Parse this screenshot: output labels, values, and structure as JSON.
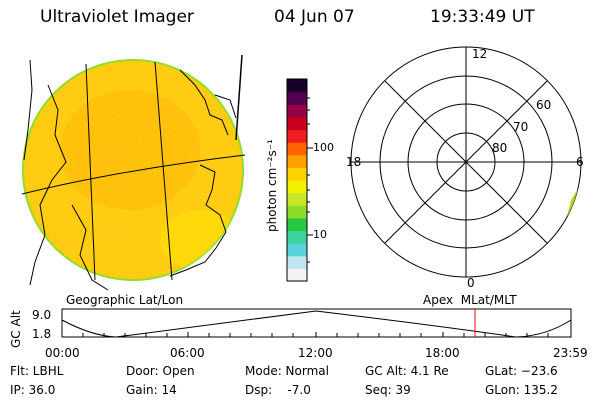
{
  "header": {
    "instrument": "Ultraviolet Imager",
    "date": "04 Jun 07",
    "time": "19:33:49 UT"
  },
  "colorbar": {
    "unit_label": "photon cm⁻²s⁻¹",
    "tick_labels": [
      "100",
      "10"
    ],
    "colors": [
      "#f2f2f2",
      "#c0e6f0",
      "#5ad2dc",
      "#3cd2a0",
      "#28c840",
      "#8cdc28",
      "#c8e628",
      "#f0f000",
      "#ffd200",
      "#ffa000",
      "#ff6400",
      "#f01e1e",
      "#c8001e",
      "#960046",
      "#500050",
      "#140028"
    ]
  },
  "globe_panel": {
    "label": "Geographic Lat/Lon",
    "fill_colors": [
      "#ffc814",
      "#ffe600",
      "#ffaa00"
    ]
  },
  "polar_panel": {
    "label": "Apex  MLat/MLT",
    "mlt_labels": [
      "12",
      "18",
      "6",
      "0"
    ],
    "mlat_labels": [
      "60",
      "70",
      "80"
    ]
  },
  "alt_plot": {
    "ylabel": "GC Alt",
    "y_ticks": [
      "9.0",
      "1.8"
    ],
    "x_ticks": [
      "00:00",
      "06:00",
      "12:00",
      "18:00",
      "23:59"
    ],
    "current_color": "#ff0000"
  },
  "footer": {
    "flt": "Flt: LBHL",
    "ip": "IP: 36.0",
    "door": "Door: Open",
    "gain": "Gain: 14",
    "mode": "Mode: Normal",
    "dsp": "Dsp:    -7.0",
    "gc_alt": "GC Alt: 4.1 Re",
    "seq": "Seq: 39",
    "glat": "GLat: −23.6",
    "glon": "GLon: 135.2"
  }
}
